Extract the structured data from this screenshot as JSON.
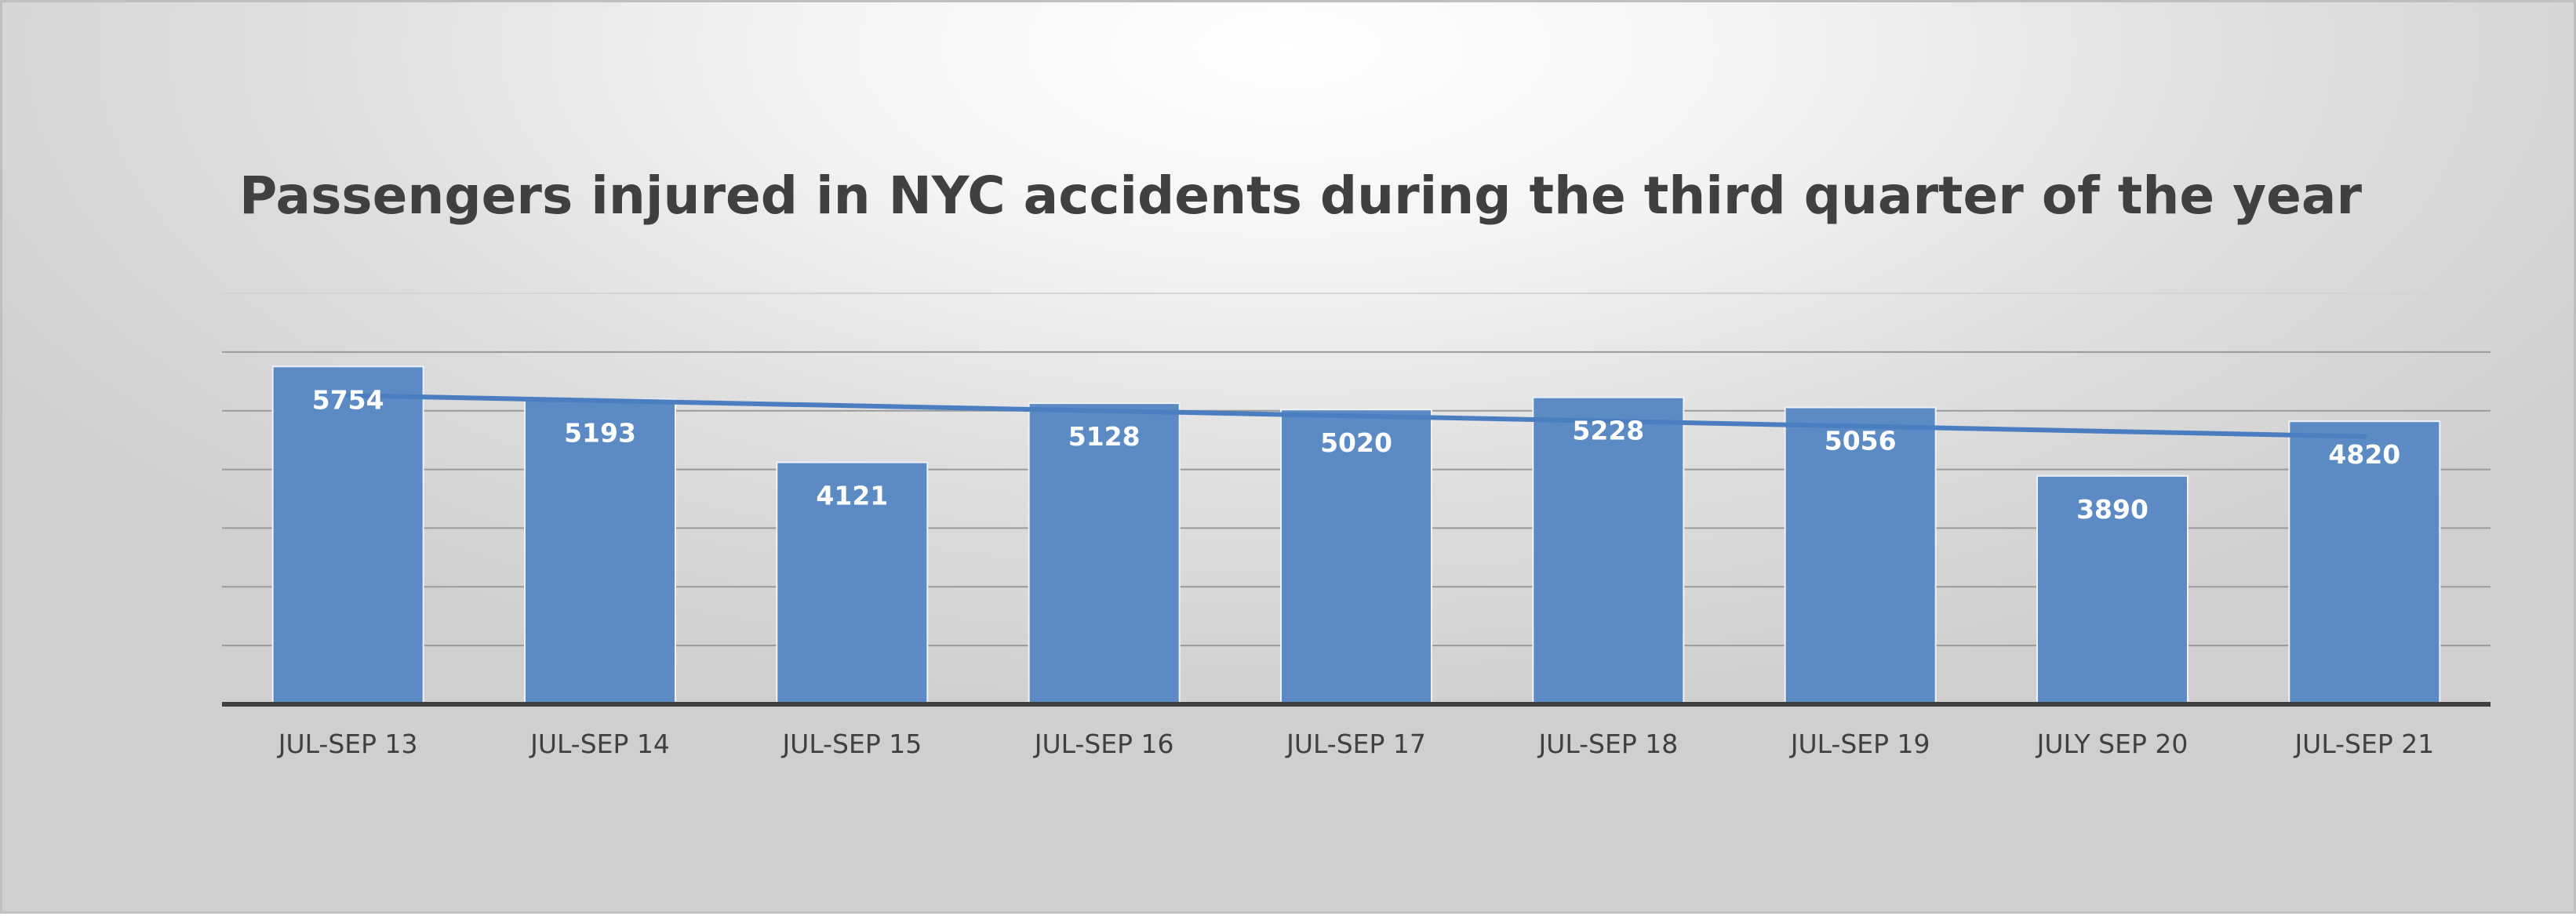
{
  "chart_data": {
    "type": "bar",
    "title": "Passengers injured in NYC accidents during the third quarter of the year",
    "categories": [
      "JUL-SEP 13",
      "JUL-SEP 14",
      "JUL-SEP 15",
      "JUL-SEP 16",
      "JUL-SEP 17",
      "JUL-SEP 18",
      "JUL-SEP 19",
      "JULY SEP 20",
      "JUL-SEP 21"
    ],
    "series": [
      {
        "values": [
          5754,
          5193,
          4121,
          5128,
          5020,
          5228,
          5056,
          3890,
          4820
        ]
      }
    ],
    "trendline": {
      "type": "linear",
      "start": 5260,
      "end": 4560
    },
    "ylim": [
      0,
      7000
    ],
    "gridlines": true,
    "data_labels": true,
    "legend": "none",
    "colors": {
      "bar": "#5b8ac4",
      "bar_edge": "#eef2f8",
      "trendline": "#4a7ec0",
      "gridline": "#9a9a9a",
      "axis": "#404040",
      "title": "#404040"
    }
  }
}
